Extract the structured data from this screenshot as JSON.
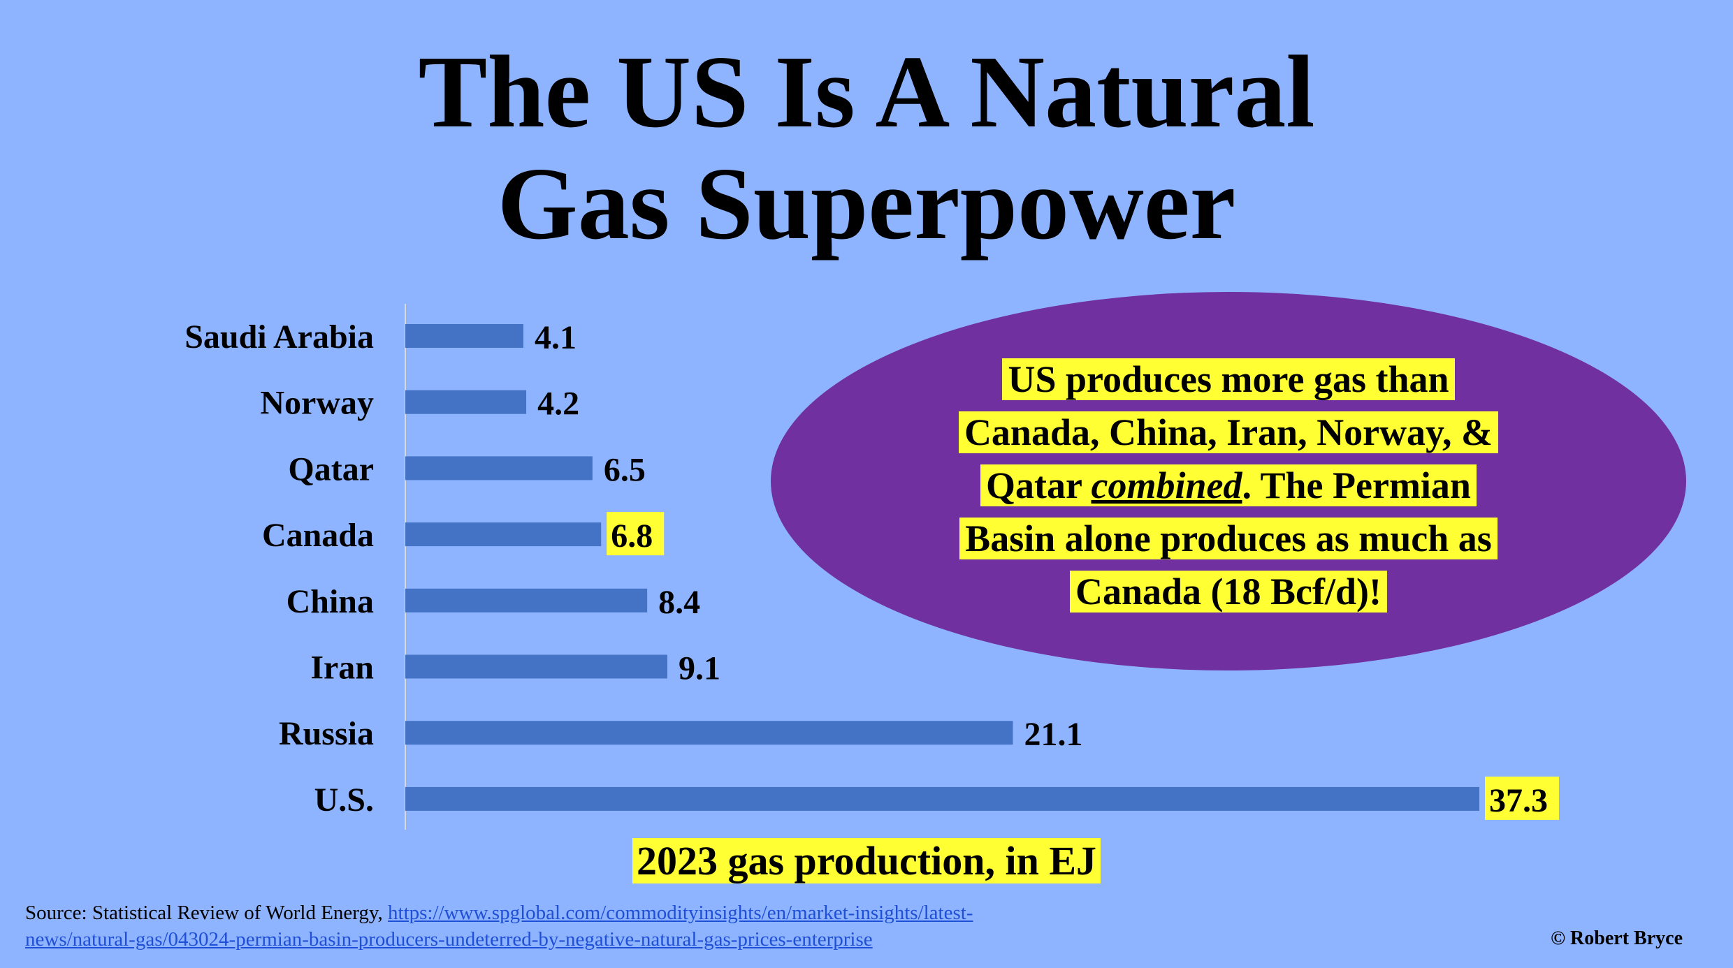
{
  "title_lines": [
    "The US Is A Natural",
    "Gas Superpower"
  ],
  "chart_data": {
    "type": "bar",
    "orientation": "horizontal",
    "categories": [
      "Saudi Arabia",
      "Norway",
      "Qatar",
      "Canada",
      "China",
      "Iran",
      "Russia",
      "U.S."
    ],
    "values": [
      4.1,
      4.2,
      6.5,
      6.8,
      8.4,
      9.1,
      21.1,
      37.3
    ],
    "value_labels": [
      "4.1",
      "4.2",
      "6.5",
      "6.8",
      "8.4",
      "9.1",
      "21.1",
      "37.3"
    ],
    "highlighted_labels": [
      "Canada",
      "U.S."
    ],
    "xlabel": "2023 gas production, in EJ",
    "ylabel": "",
    "xlim": [
      0,
      37.3
    ],
    "grid": false,
    "bar_color": "#4472c4",
    "highlight_color": "#ffff33"
  },
  "callout": {
    "line1_pre": "US",
    "line1_post": " produces more gas than ",
    "line2": "Canada, China, Iran, Norway, & ",
    "line3_pre": "Qatar ",
    "line3_em": "combined",
    "line3_post": ". The Permian ",
    "line4": "Basin alone produces as much as ",
    "line5": "Canada (18 Bcf/d)!"
  },
  "source": {
    "prefix": "Source: Statistical Review of World Energy, ",
    "link_line1": "https://www.spglobal.com/commodityinsights/en/market-insights/latest-",
    "link_line2": "news/natural-gas/043024-permian-basin-producers-undeterred-by-negative-natural-gas-prices-enterprise"
  },
  "credit": "© Robert Bryce",
  "colors": {
    "background": "#8fb4ff",
    "ellipse": "#7030a0",
    "highlight": "#ffff33",
    "link": "#1f4fd6"
  }
}
